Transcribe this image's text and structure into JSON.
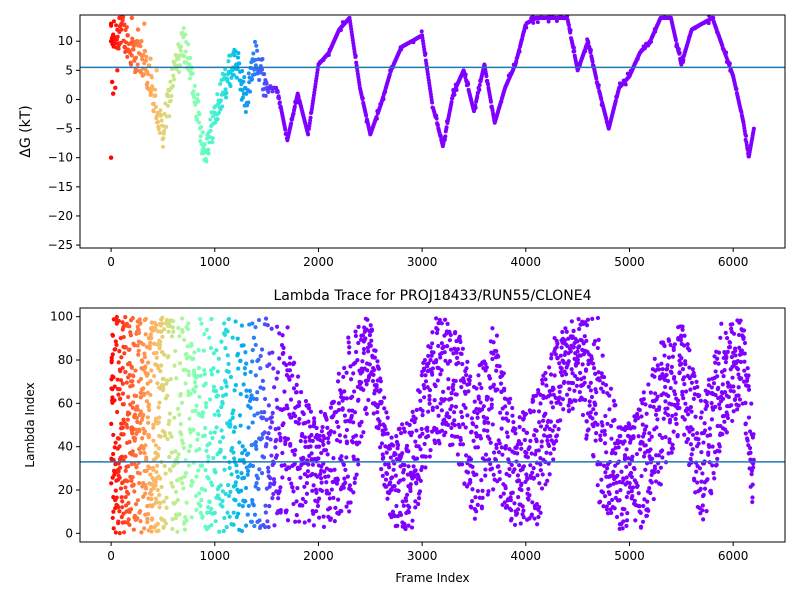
{
  "chart_data": [
    {
      "type": "scatter",
      "title": "",
      "xlabel": "",
      "ylabel": "ΔG (kT)",
      "xlim": [
        -300,
        6500
      ],
      "ylim": [
        -25.5,
        14.5
      ],
      "xticks": [
        0,
        1000,
        2000,
        3000,
        4000,
        5000,
        6000
      ],
      "yticks": [
        -25,
        -20,
        -15,
        -10,
        -5,
        0,
        5,
        10
      ],
      "hline": 5.5,
      "hline_color": "#1f77b4",
      "colormap": "rainbow (late frames purple, early frames red)",
      "trace_x": [
        0,
        100,
        200,
        300,
        400,
        500,
        600,
        700,
        800,
        900,
        1000,
        1100,
        1200,
        1300,
        1400,
        1500,
        1600,
        1700,
        1800,
        1900,
        2000,
        2100,
        2200,
        2300,
        2400,
        2500,
        2600,
        2700,
        2800,
        2900,
        3000,
        3100,
        3200,
        3300,
        3400,
        3500,
        3600,
        3700,
        3800,
        3900,
        4000,
        4100,
        4200,
        4300,
        4400,
        4500,
        4600,
        4700,
        4800,
        4900,
        5000,
        5100,
        5200,
        5300,
        5400,
        5500,
        5600,
        5700,
        5800,
        5900,
        6000,
        6100,
        6150,
        6200
      ],
      "trace_y": [
        10,
        12,
        8,
        7,
        1,
        -6,
        4,
        10,
        2,
        -9,
        -3,
        3,
        7,
        0,
        8,
        2,
        2,
        -7,
        1,
        -6,
        6,
        8,
        12,
        14,
        2,
        -6,
        -1,
        5,
        9,
        10,
        11,
        -1,
        -8,
        1,
        5,
        -2,
        6,
        -4,
        2,
        6,
        13,
        14,
        14,
        14,
        14,
        5,
        10,
        2,
        -5,
        2,
        4,
        8,
        10,
        14,
        14,
        6,
        12,
        13,
        14,
        9,
        4,
        -4,
        -10,
        -5
      ],
      "early_points": [
        {
          "x": 0,
          "y": -10
        },
        {
          "x": 0,
          "y": 10
        },
        {
          "x": 0,
          "y": 13
        },
        {
          "x": 10,
          "y": 3
        },
        {
          "x": 20,
          "y": 1
        },
        {
          "x": 40,
          "y": 2
        },
        {
          "x": 60,
          "y": 5
        },
        {
          "x": 80,
          "y": 14
        },
        {
          "x": 100,
          "y": 13
        },
        {
          "x": 130,
          "y": 9
        },
        {
          "x": 160,
          "y": 11
        },
        {
          "x": 200,
          "y": 14
        },
        {
          "x": 230,
          "y": 7
        },
        {
          "x": 260,
          "y": 12
        },
        {
          "x": 290,
          "y": 10
        },
        {
          "x": 320,
          "y": 13
        },
        {
          "x": 350,
          "y": 2
        },
        {
          "x": 380,
          "y": 7
        },
        {
          "x": 410,
          "y": -2
        },
        {
          "x": 440,
          "y": 5
        }
      ]
    },
    {
      "type": "scatter",
      "title": "Lambda Trace for PROJ18433/RUN55/CLONE4",
      "xlabel": "Frame Index",
      "ylabel": "Lambda Index",
      "xlim": [
        -300,
        6500
      ],
      "ylim": [
        -4,
        104
      ],
      "xticks": [
        0,
        1000,
        2000,
        3000,
        4000,
        5000,
        6000
      ],
      "yticks": [
        0,
        20,
        40,
        60,
        80,
        100
      ],
      "hline": 33,
      "hline_color": "#1f77b4",
      "colormap": "rainbow (late frames purple, early frames red)",
      "envelope": [
        {
          "x": 0,
          "lo": 0,
          "hi": 100
        },
        {
          "x": 1500,
          "lo": 0,
          "hi": 100
        },
        {
          "x": 1700,
          "lo": 5,
          "hi": 95
        },
        {
          "x": 1900,
          "lo": 2,
          "hi": 60
        },
        {
          "x": 2100,
          "lo": 2,
          "hi": 55
        },
        {
          "x": 2300,
          "lo": 10,
          "hi": 95
        },
        {
          "x": 2500,
          "lo": 60,
          "hi": 100
        },
        {
          "x": 2700,
          "lo": 2,
          "hi": 45
        },
        {
          "x": 2900,
          "lo": 2,
          "hi": 55
        },
        {
          "x": 3100,
          "lo": 40,
          "hi": 100
        },
        {
          "x": 3300,
          "lo": 40,
          "hi": 100
        },
        {
          "x": 3500,
          "lo": 5,
          "hi": 70
        },
        {
          "x": 3700,
          "lo": 20,
          "hi": 100
        },
        {
          "x": 3900,
          "lo": 2,
          "hi": 50
        },
        {
          "x": 4100,
          "lo": 2,
          "hi": 70
        },
        {
          "x": 4300,
          "lo": 40,
          "hi": 95
        },
        {
          "x": 4500,
          "lo": 60,
          "hi": 100
        },
        {
          "x": 4700,
          "lo": 15,
          "hi": 100
        },
        {
          "x": 4900,
          "lo": 2,
          "hi": 50
        },
        {
          "x": 5100,
          "lo": 2,
          "hi": 60
        },
        {
          "x": 5300,
          "lo": 20,
          "hi": 90
        },
        {
          "x": 5500,
          "lo": 50,
          "hi": 100
        },
        {
          "x": 5700,
          "lo": 2,
          "hi": 60
        },
        {
          "x": 5900,
          "lo": 40,
          "hi": 100
        },
        {
          "x": 6100,
          "lo": 60,
          "hi": 100
        },
        {
          "x": 6200,
          "lo": 2,
          "hi": 45
        }
      ]
    }
  ]
}
